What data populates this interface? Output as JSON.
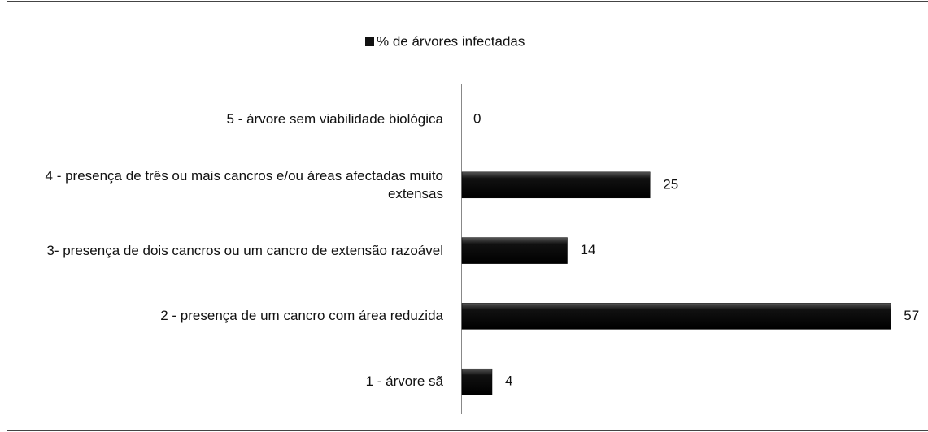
{
  "chart_data": {
    "type": "bar",
    "orientation": "horizontal",
    "categories": [
      "5 - árvore sem viabilidade biológica",
      "4 - presença de três ou mais cancros e/ou áreas afectadas muito extensas",
      "3- presença de dois cancros ou um cancro de extensão razoável",
      "2 - presença de um cancro com área reduzida",
      "1 - árvore sã"
    ],
    "series": [
      {
        "name": "% de árvores infectadas",
        "color": "#111111",
        "values": [
          0,
          25,
          14,
          57,
          4
        ]
      }
    ],
    "legend": "top"
  }
}
